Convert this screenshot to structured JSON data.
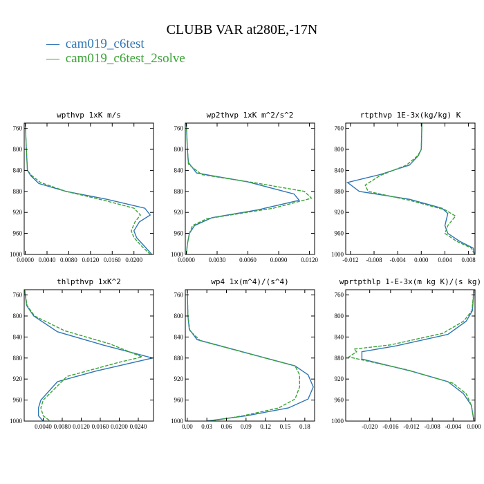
{
  "figure": {
    "title": "CLUBB VAR at280E,-17N",
    "legend": [
      {
        "marker": "—",
        "name": "cam019_c6test",
        "color": "#2e75b6",
        "dash": "solid"
      },
      {
        "marker": "—",
        "name": "cam019_c6test_2solve",
        "color": "#3aa335",
        "dash": "dashed"
      }
    ]
  },
  "chart_data": [
    {
      "type": "line",
      "title": "wpthvp  1xK m/s",
      "xlim": [
        -0.0002,
        0.0236
      ],
      "ylim": [
        750,
        1000
      ],
      "y_inverted": true,
      "xticks": [
        "0.0000",
        "0.0040",
        "0.0080",
        "0.0120",
        "0.0160",
        "0.0200"
      ],
      "xtick_values": [
        0,
        0.004,
        0.008,
        0.012,
        0.016,
        0.02
      ],
      "yticks": [
        "760",
        "800",
        "840",
        "880",
        "920",
        "960",
        "1000"
      ],
      "ytick_values": [
        760,
        800,
        840,
        880,
        920,
        960,
        1000
      ],
      "series": [
        {
          "name": "cam019_c6test",
          "points": [
            [
              0,
              750
            ],
            [
              0.0002,
              800
            ],
            [
              0.0004,
              840
            ],
            [
              0.001,
              850
            ],
            [
              0.0025,
              865
            ],
            [
              0.0075,
              880
            ],
            [
              0.015,
              895
            ],
            [
              0.022,
              912
            ],
            [
              0.023,
              925
            ],
            [
              0.021,
              938
            ],
            [
              0.02,
              955
            ],
            [
              0.0205,
              968
            ],
            [
              0.022,
              985
            ],
            [
              0.0233,
              1000
            ]
          ]
        },
        {
          "name": "cam019_c6test_2solve",
          "points": [
            [
              0,
              750
            ],
            [
              0.0002,
              800
            ],
            [
              0.0004,
              840
            ],
            [
              0.0012,
              850
            ],
            [
              0.0028,
              863
            ],
            [
              0.0075,
              880
            ],
            [
              0.0145,
              897
            ],
            [
              0.02,
              912
            ],
            [
              0.0212,
              925
            ],
            [
              0.0202,
              938
            ],
            [
              0.0195,
              955
            ],
            [
              0.02,
              968
            ],
            [
              0.0215,
              985
            ],
            [
              0.023,
              1000
            ]
          ]
        }
      ]
    },
    {
      "type": "line",
      "title": "wp2thvp  1xK m^2/s^2",
      "xlim": [
        -0.0001,
        0.0125
      ],
      "ylim": [
        750,
        1000
      ],
      "y_inverted": true,
      "xticks": [
        "0.0000",
        "0.0030",
        "0.0060",
        "0.0090",
        "0.0120"
      ],
      "xtick_values": [
        0,
        0.003,
        0.006,
        0.009,
        0.012
      ],
      "yticks": [
        "760",
        "800",
        "840",
        "880",
        "920",
        "960",
        "1000"
      ],
      "ytick_values": [
        760,
        800,
        840,
        880,
        920,
        960,
        1000
      ],
      "series": [
        {
          "name": "cam019_c6test",
          "points": [
            [
              0,
              750
            ],
            [
              0.0001,
              800
            ],
            [
              0.0002,
              825
            ],
            [
              0.001,
              845
            ],
            [
              0.006,
              862
            ],
            [
              0.0105,
              885
            ],
            [
              0.011,
              897
            ],
            [
              0.007,
              915
            ],
            [
              0.0025,
              930
            ],
            [
              0.0008,
              945
            ],
            [
              0.0003,
              960
            ],
            [
              0.0001,
              980
            ],
            [
              0,
              1000
            ]
          ]
        },
        {
          "name": "cam019_c6test_2solve",
          "points": [
            [
              0,
              750
            ],
            [
              0.0001,
              800
            ],
            [
              0.0002,
              828
            ],
            [
              0.0015,
              848
            ],
            [
              0.0065,
              863
            ],
            [
              0.0115,
              880
            ],
            [
              0.0122,
              893
            ],
            [
              0.0085,
              912
            ],
            [
              0.002,
              932
            ],
            [
              0.0006,
              945
            ],
            [
              0.0003,
              960
            ],
            [
              0.0001,
              980
            ],
            [
              0,
              1000
            ]
          ]
        }
      ]
    },
    {
      "type": "line",
      "title": "rtpthvp  1E-3x(kg/kg) K",
      "xlim": [
        -0.0128,
        0.0091
      ],
      "ylim": [
        750,
        1000
      ],
      "y_inverted": true,
      "xticks": [
        "-0.012",
        "-0.008",
        "-0.004",
        "0.000",
        "0.004",
        "0.008"
      ],
      "xtick_values": [
        -0.012,
        -0.008,
        -0.004,
        0,
        0.004,
        0.008
      ],
      "yticks": [
        "760",
        "800",
        "840",
        "880",
        "920",
        "960",
        "1000"
      ],
      "ytick_values": [
        760,
        800,
        840,
        880,
        920,
        960,
        1000
      ],
      "series": [
        {
          "name": "cam019_c6test",
          "points": [
            [
              0.0001,
              750
            ],
            [
              0,
              800
            ],
            [
              -0.0005,
              812
            ],
            [
              -0.002,
              830
            ],
            [
              -0.007,
              848
            ],
            [
              -0.0125,
              863
            ],
            [
              -0.0105,
              880
            ],
            [
              -0.002,
              895
            ],
            [
              0.0035,
              912
            ],
            [
              0.0045,
              922
            ],
            [
              0.004,
              945
            ],
            [
              0.0045,
              960
            ],
            [
              0.0065,
              975
            ],
            [
              0.0088,
              988
            ],
            [
              0.009,
              1000
            ]
          ]
        },
        {
          "name": "cam019_c6test_2solve",
          "points": [
            [
              0.0001,
              750
            ],
            [
              0,
              800
            ],
            [
              -0.0006,
              812
            ],
            [
              -0.0025,
              830
            ],
            [
              -0.007,
              850
            ],
            [
              -0.0095,
              868
            ],
            [
              -0.009,
              880
            ],
            [
              -0.002,
              897
            ],
            [
              0.004,
              915
            ],
            [
              0.0058,
              927
            ],
            [
              0.0045,
              945
            ],
            [
              0.004,
              960
            ],
            [
              0.006,
              975
            ],
            [
              0.0085,
              988
            ],
            [
              0.009,
              1000
            ]
          ]
        }
      ]
    },
    {
      "type": "line",
      "title": "thlpthvp  1xK^2",
      "xlim": [
        0,
        0.0272
      ],
      "ylim": [
        750,
        1000
      ],
      "y_inverted": true,
      "xticks": [
        "0.0040",
        "0.0080",
        "0.0120",
        "0.0160",
        "0.0200",
        "0.0240"
      ],
      "xtick_values": [
        0.004,
        0.008,
        0.012,
        0.016,
        0.02,
        0.024
      ],
      "yticks": [
        "760",
        "800",
        "840",
        "880",
        "920",
        "960",
        "1000"
      ],
      "ytick_values": [
        760,
        800,
        840,
        880,
        920,
        960,
        1000
      ],
      "series": [
        {
          "name": "cam019_c6test",
          "points": [
            [
              0.0001,
              750
            ],
            [
              0.0005,
              780
            ],
            [
              0.002,
              800
            ],
            [
              0.007,
              830
            ],
            [
              0.0165,
              855
            ],
            [
              0.027,
              880
            ],
            [
              0.015,
              905
            ],
            [
              0.007,
              925
            ],
            [
              0.0035,
              960
            ],
            [
              0.003,
              975
            ],
            [
              0.003,
              990
            ],
            [
              0.004,
              1000
            ]
          ]
        },
        {
          "name": "cam019_c6test_2solve",
          "points": [
            [
              0.0001,
              750
            ],
            [
              0.0006,
              780
            ],
            [
              0.0022,
              800
            ],
            [
              0.0085,
              828
            ],
            [
              0.018,
              853
            ],
            [
              0.0248,
              878
            ],
            [
              0.02,
              888
            ],
            [
              0.009,
              915
            ],
            [
              0.004,
              960
            ],
            [
              0.0035,
              975
            ],
            [
              0.004,
              990
            ],
            [
              0.0055,
              1000
            ]
          ]
        }
      ]
    },
    {
      "type": "line",
      "title": "wp4  1x(m^4)/(s^4)",
      "xlim": [
        -0.003,
        0.195
      ],
      "ylim": [
        750,
        1000
      ],
      "y_inverted": true,
      "xticks": [
        "0.00",
        "0.03",
        "0.06",
        "0.09",
        "0.12",
        "0.15",
        "0.18"
      ],
      "xtick_values": [
        0,
        0.03,
        0.06,
        0.09,
        0.12,
        0.15,
        0.18
      ],
      "yticks": [
        "760",
        "800",
        "840",
        "880",
        "920",
        "960",
        "1000"
      ],
      "ytick_values": [
        760,
        800,
        840,
        880,
        920,
        960,
        1000
      ],
      "series": [
        {
          "name": "cam019_c6test",
          "points": [
            [
              0,
              750
            ],
            [
              0.001,
              800
            ],
            [
              0.003,
              825
            ],
            [
              0.015,
              845
            ],
            [
              0.06,
              860
            ],
            [
              0.12,
              880
            ],
            [
              0.165,
              895
            ],
            [
              0.185,
              912
            ],
            [
              0.193,
              935
            ],
            [
              0.185,
              958
            ],
            [
              0.155,
              975
            ],
            [
              0.09,
              990
            ],
            [
              0.03,
              1000
            ]
          ]
        },
        {
          "name": "cam019_c6test_2solve",
          "points": [
            [
              0,
              750
            ],
            [
              0.001,
              800
            ],
            [
              0.004,
              828
            ],
            [
              0.02,
              847
            ],
            [
              0.065,
              862
            ],
            [
              0.125,
              882
            ],
            [
              0.165,
              895
            ],
            [
              0.172,
              912
            ],
            [
              0.172,
              935
            ],
            [
              0.165,
              958
            ],
            [
              0.14,
              975
            ],
            [
              0.085,
              990
            ],
            [
              0.035,
              1000
            ]
          ]
        }
      ]
    },
    {
      "type": "line",
      "title": "wprtpthlp  1-E-3x(m kg K)/(s kg)",
      "xlim": [
        -0.0246,
        0.0002
      ],
      "ylim": [
        750,
        1000
      ],
      "y_inverted": true,
      "xticks": [
        "-0.020",
        "-0.016",
        "-0.012",
        "-0.008",
        "-0.004",
        "0.000"
      ],
      "xtick_values": [
        -0.02,
        -0.016,
        -0.012,
        -0.008,
        -0.004,
        0
      ],
      "yticks": [
        "760",
        "800",
        "840",
        "880",
        "920",
        "960",
        "1000"
      ],
      "ytick_values": [
        760,
        800,
        840,
        880,
        920,
        960,
        1000
      ],
      "series": [
        {
          "name": "cam019_c6test",
          "points": [
            [
              0,
              750
            ],
            [
              -0.0003,
              790
            ],
            [
              -0.0015,
              810
            ],
            [
              -0.005,
              835
            ],
            [
              -0.015,
              857
            ],
            [
              -0.0215,
              868
            ],
            [
              -0.0215,
              882
            ],
            [
              -0.012,
              905
            ],
            [
              -0.005,
              925
            ],
            [
              -0.002,
              948
            ],
            [
              -0.0005,
              970
            ],
            [
              0,
              1000
            ]
          ]
        },
        {
          "name": "cam019_c6test_2solve",
          "points": [
            [
              0,
              750
            ],
            [
              -0.0004,
              790
            ],
            [
              -0.002,
              810
            ],
            [
              -0.006,
              833
            ],
            [
              -0.016,
              855
            ],
            [
              -0.023,
              863
            ],
            [
              -0.0225,
              868
            ],
            [
              -0.024,
              878
            ],
            [
              -0.013,
              902
            ],
            [
              -0.004,
              928
            ],
            [
              -0.0015,
              948
            ],
            [
              -0.0005,
              970
            ],
            [
              0,
              1000
            ]
          ]
        }
      ]
    }
  ]
}
